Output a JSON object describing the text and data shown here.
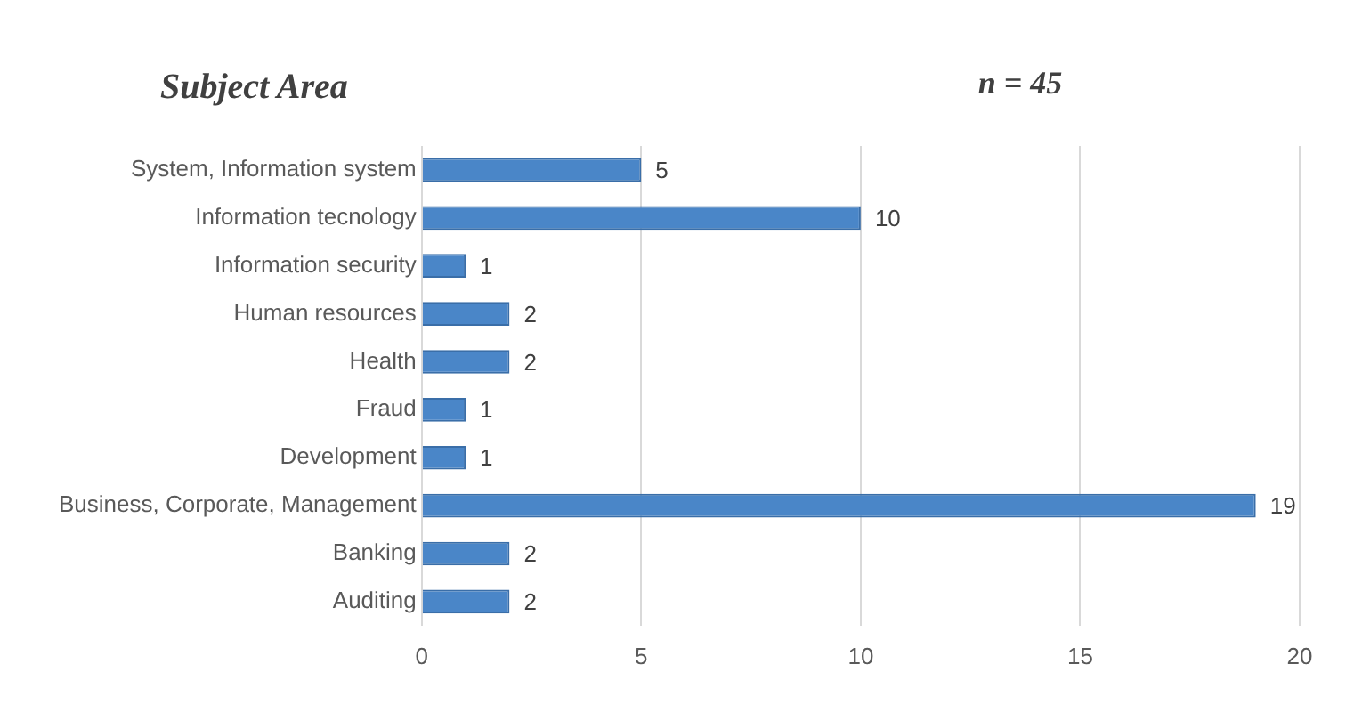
{
  "chart_data": {
    "type": "bar",
    "orientation": "horizontal",
    "title": "Subject Area",
    "annotations": [
      "n = 45"
    ],
    "categories": [
      "System, Information system",
      "Information tecnology",
      "Information security",
      "Human resources",
      "Health",
      "Fraud",
      "Development",
      "Business, Corporate, Management",
      "Banking",
      "Auditing"
    ],
    "values": [
      5,
      10,
      1,
      2,
      2,
      1,
      1,
      19,
      2,
      2
    ],
    "color": "#4a86c8",
    "xlim": [
      0,
      20
    ],
    "xticks": [
      0,
      5,
      10,
      15,
      20
    ],
    "grid": "x",
    "data_labels": true
  }
}
